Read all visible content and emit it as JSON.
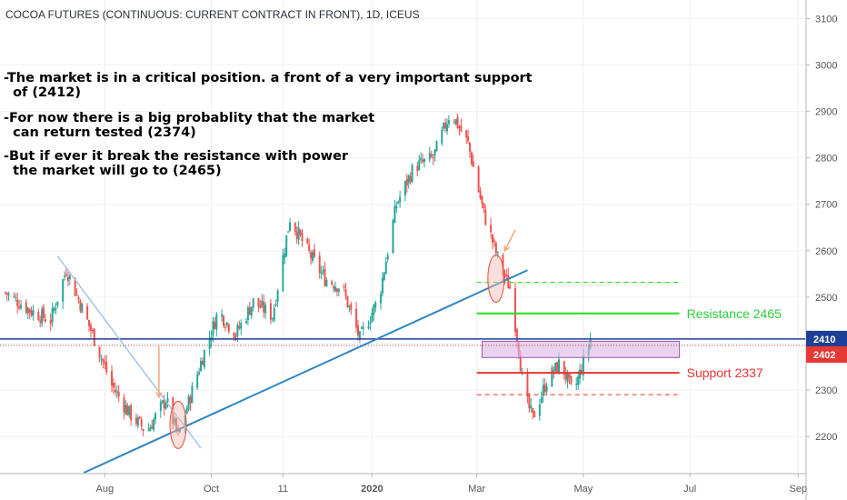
{
  "header": {
    "title": "COCOA FUTURES (CONTINUOUS: CURRENT CONTRACT IN FRONT), 1D, ICEUS"
  },
  "notes": [
    "-The market is in a critical position. a front of a very important support\n  of (2412)",
    "-For now there is a big probablity that the market\n  can return tested (2374)",
    "-But if ever it break the resistance with power\n  the market will go to (2465)"
  ],
  "colors": {
    "up": "#26a69a",
    "down": "#ef5350",
    "trendline": "#2e86c1",
    "resistance": "#22dd22",
    "support": "#ee3333",
    "current_price": "#1e3f96",
    "zone": "#dcb6e6",
    "arrow": "#f5a57a",
    "grid": "#eef0f3"
  },
  "chart_data": {
    "type": "candlestick",
    "ylim": [
      2120,
      3140
    ],
    "y_ticks": [
      2200,
      2300,
      2400,
      2500,
      2600,
      2700,
      2800,
      2900,
      3000,
      3100
    ],
    "x_ticks": [
      "Aug",
      "Oct",
      "11",
      "2020",
      "Mar",
      "May",
      "Jul",
      "Sep"
    ],
    "x_tick_dates": [
      "2019-08-01",
      "2019-10-01",
      "2019-11-11",
      "2020-01-01",
      "2020-03-01",
      "2020-05-01",
      "2020-07-01",
      "2020-09-01"
    ],
    "x_range": [
      "2019-06-02",
      "2020-09-05"
    ],
    "close_path": [
      [
        "2019-06-05",
        2510
      ],
      [
        "2019-06-20",
        2470
      ],
      [
        "2019-07-01",
        2450
      ],
      [
        "2019-07-10",
        2560
      ],
      [
        "2019-07-25",
        2420
      ],
      [
        "2019-08-05",
        2310
      ],
      [
        "2019-08-15",
        2250
      ],
      [
        "2019-08-25",
        2210
      ],
      [
        "2019-09-05",
        2280
      ],
      [
        "2019-09-12",
        2200
      ],
      [
        "2019-09-25",
        2360
      ],
      [
        "2019-10-05",
        2470
      ],
      [
        "2019-10-15",
        2420
      ],
      [
        "2019-10-25",
        2490
      ],
      [
        "2019-11-05",
        2460
      ],
      [
        "2019-11-15",
        2670
      ],
      [
        "2019-11-25",
        2600
      ],
      [
        "2019-12-05",
        2540
      ],
      [
        "2019-12-15",
        2520
      ],
      [
        "2019-12-25",
        2410
      ],
      [
        "2020-01-05",
        2500
      ],
      [
        "2020-01-15",
        2700
      ],
      [
        "2020-01-25",
        2780
      ],
      [
        "2020-02-05",
        2800
      ],
      [
        "2020-02-15",
        2900
      ],
      [
        "2020-02-25",
        2830
      ],
      [
        "2020-03-05",
        2680
      ],
      [
        "2020-03-15",
        2560
      ],
      [
        "2020-03-20",
        2520
      ],
      [
        "2020-03-25",
        2390
      ],
      [
        "2020-03-28",
        2290
      ],
      [
        "2020-04-02",
        2240
      ],
      [
        "2020-04-10",
        2320
      ],
      [
        "2020-04-18",
        2360
      ],
      [
        "2020-04-25",
        2290
      ],
      [
        "2020-05-01",
        2360
      ],
      [
        "2020-05-05",
        2410
      ]
    ],
    "last_price": 2410,
    "price_labels": [
      {
        "value": 2410,
        "text": "2410"
      },
      {
        "value": 2402,
        "text": "2402"
      }
    ],
    "levels": [
      {
        "name": "Resistance 2465",
        "value": 2465,
        "style": "solid",
        "color": "#22dd22",
        "from": "2020-03-01",
        "to": "2020-06-25"
      },
      {
        "name": "",
        "value": 2532,
        "style": "dashed",
        "color": "#22dd22",
        "from": "2020-03-01",
        "to": "2020-06-25"
      },
      {
        "name": "Support 2337",
        "value": 2337,
        "style": "solid",
        "color": "#ee3333",
        "from": "2020-03-01",
        "to": "2020-06-25"
      },
      {
        "name": "",
        "value": 2290,
        "style": "dashed",
        "color": "#ee3333",
        "from": "2020-03-01",
        "to": "2020-06-25"
      }
    ],
    "zone": {
      "from": "2020-03-04",
      "to": "2020-06-25",
      "top": 2405,
      "bottom": 2370
    },
    "trendlines": [
      {
        "points": [
          [
            "2019-07-20",
            2122
          ],
          [
            "2020-03-30",
            2558
          ]
        ],
        "color": "#2e86c1"
      },
      {
        "points": [
          [
            "2019-07-05",
            2588
          ],
          [
            "2019-09-25",
            2175
          ]
        ],
        "color": "#9dc3e6"
      }
    ],
    "ellipses": [
      {
        "date": "2019-09-12",
        "value": 2225
      },
      {
        "date": "2020-03-12",
        "value": 2540
      }
    ],
    "arrows": [
      {
        "from": [
          "2019-09-01",
          2395
        ],
        "to": [
          "2019-09-01",
          2285
        ]
      },
      {
        "from": [
          "2020-03-23",
          2645
        ],
        "to": [
          "2020-03-17",
          2600
        ]
      }
    ]
  }
}
